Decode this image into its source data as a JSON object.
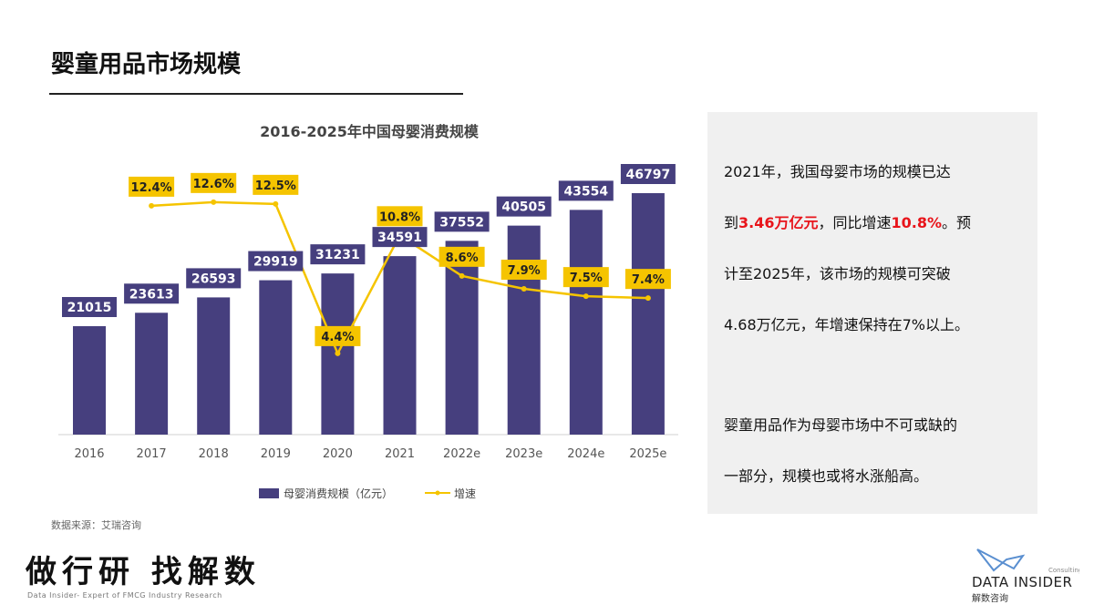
{
  "page": {
    "title": "婴童用品市场规模",
    "source": "数据来源：艾瑞咨询",
    "slogan": "做行研 找解数",
    "slogan_sub": "Data Insider- Expert of FMCG Industry Research"
  },
  "logo": {
    "name": "DATA INSIDER",
    "sub": "解数咨询",
    "tag": "Consulting"
  },
  "panel": {
    "p1_a": "2021年，我国母婴市场的规模已达",
    "p1_b": "到",
    "p1_c": "3.46万亿元",
    "p1_d": "，同比增速",
    "p1_e": "10.8%",
    "p1_f": "。预",
    "p1_g": "计至2025年，该市场的规模可突破",
    "p1_h": "4.68万亿元，年增速保持在7%以上。",
    "p2_a": "婴童用品作为母婴市场中不可或缺的",
    "p2_b": "一部分，规模也或将水涨船高。"
  },
  "chart_data": {
    "type": "bar",
    "title": "2016-2025年中国母婴消费规模",
    "categories": [
      "2016",
      "2017",
      "2018",
      "2019",
      "2020",
      "2021",
      "2022e",
      "2023e",
      "2024e",
      "2025e"
    ],
    "series": [
      {
        "name": "母婴消费规模（亿元）",
        "type": "bar",
        "values": [
          21015,
          23613,
          26593,
          29919,
          31231,
          34591,
          37552,
          40505,
          43554,
          46797
        ],
        "color": "#463f7e"
      },
      {
        "name": "增速",
        "type": "line",
        "values": [
          null,
          12.4,
          12.6,
          12.5,
          4.4,
          10.8,
          8.6,
          7.9,
          7.5,
          7.4
        ],
        "labels": [
          "",
          "12.4%",
          "12.6%",
          "12.5%",
          "4.4%",
          "10.8%",
          "8.6%",
          "7.9%",
          "7.5%",
          "7.4%"
        ],
        "color": "#f5c400"
      }
    ],
    "legend": "bottom",
    "grid": false
  }
}
